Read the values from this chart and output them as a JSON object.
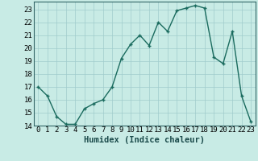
{
  "xlabel": "Humidex (Indice chaleur)",
  "ylabel": "",
  "x": [
    0,
    1,
    2,
    3,
    4,
    5,
    6,
    7,
    8,
    9,
    10,
    11,
    12,
    13,
    14,
    15,
    16,
    17,
    18,
    19,
    20,
    21,
    22,
    23
  ],
  "y": [
    17.0,
    16.3,
    14.7,
    14.1,
    14.1,
    15.3,
    15.7,
    16.0,
    17.0,
    19.2,
    20.3,
    21.0,
    20.2,
    22.0,
    21.3,
    22.9,
    23.1,
    23.3,
    23.1,
    19.3,
    18.8,
    21.3,
    16.3,
    14.3
  ],
  "line_color": "#1a6b5e",
  "marker": "+",
  "marker_color": "#1a6b5e",
  "bg_color": "#c8ebe5",
  "grid_color": "#a0cccc",
  "ylim": [
    14,
    23.6
  ],
  "yticks": [
    14,
    15,
    16,
    17,
    18,
    19,
    20,
    21,
    22,
    23
  ],
  "xticks": [
    0,
    1,
    2,
    3,
    4,
    5,
    6,
    7,
    8,
    9,
    10,
    11,
    12,
    13,
    14,
    15,
    16,
    17,
    18,
    19,
    20,
    21,
    22,
    23
  ],
  "tick_fontsize": 6.5,
  "xlabel_fontsize": 7.5,
  "line_width": 1.0,
  "marker_size": 3.5
}
